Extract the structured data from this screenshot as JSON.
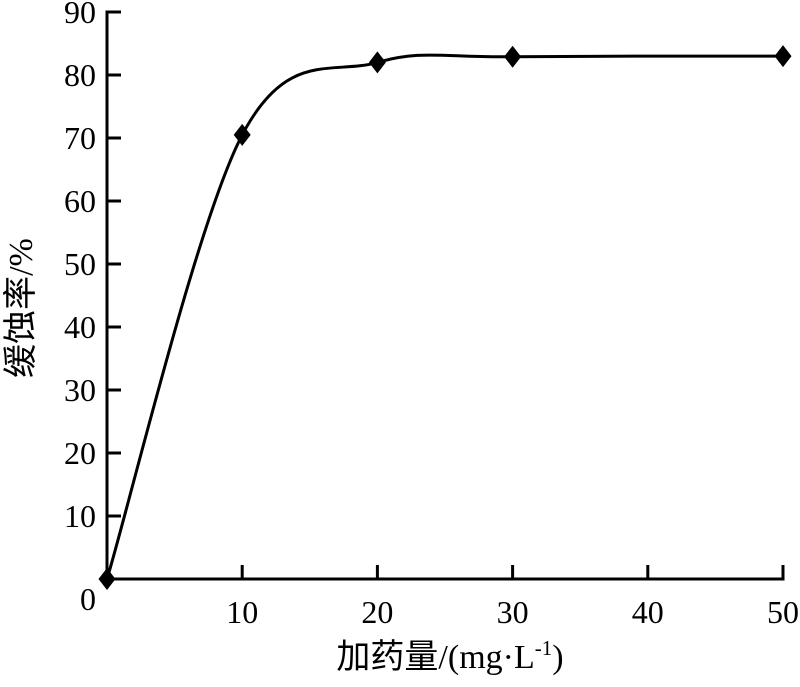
{
  "figure": {
    "background": "#ffffff",
    "axis_color": "#000000"
  },
  "chart_data": {
    "type": "line",
    "title": "",
    "xlabel": "加药量/(mg·L⁻¹)",
    "ylabel": "缓蚀率/%",
    "xlabel_parts": {
      "main": "加药量/(mg·L",
      "sup": "-1",
      "close": ")"
    },
    "xlim": [
      0,
      50
    ],
    "ylim": [
      0,
      90
    ],
    "xticks": [
      10,
      20,
      30,
      40,
      50
    ],
    "xtick_labels": [
      "10",
      "20",
      "30",
      "40",
      "50"
    ],
    "yticks": [
      10,
      20,
      30,
      40,
      50,
      60,
      70,
      80,
      90
    ],
    "ytick_labels": [
      "10",
      "20",
      "30",
      "40",
      "50",
      "60",
      "70",
      "80",
      "90"
    ],
    "origin_label": "0",
    "grid": false,
    "legend": "none",
    "curve": "smooth",
    "series": [
      {
        "name": "缓蚀率",
        "marker": "diamond",
        "color": "#000000",
        "x": [
          0,
          10,
          20,
          30,
          50
        ],
        "y": [
          0,
          70.5,
          82,
          82.9,
          83
        ]
      }
    ]
  }
}
